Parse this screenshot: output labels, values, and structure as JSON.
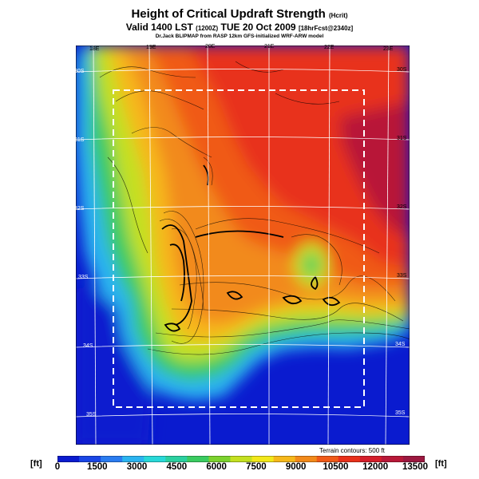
{
  "header": {
    "title": "Height of Critical Updraft Strength",
    "title_suffix": "(Hcrit)",
    "subtitle": "Valid 1400 LST",
    "subtitle_code": "(1200Z)",
    "subtitle_date": "TUE 20 Oct 2009",
    "subtitle_forecast": "[18hrFcst@2340z]",
    "credit": "Dr.Jack BLIPMAP from RASP 12km GFS-initialized WRF-ARW model"
  },
  "map": {
    "lon_labels_top": [
      "18E",
      "19E",
      "20E",
      "21E",
      "22E",
      "23E"
    ],
    "lon_labels_bottom": [
      "18E",
      "19E",
      "20E",
      "21E"
    ],
    "lat_labels_right": [
      "30S",
      "31S",
      "32S",
      "33S",
      "34S",
      "35S"
    ],
    "lat_labels_left": [
      "30S",
      "31S",
      "32S",
      "33S",
      "34S",
      "35S"
    ],
    "terrain_contours": "Terrain contours: 500 ft"
  },
  "colorbar": {
    "unit_left": "[ft]",
    "unit_right": "[ft]",
    "ticks": [
      "0",
      "1500",
      "3000",
      "4500",
      "6000",
      "7500",
      "9000",
      "10500",
      "12000",
      "13500"
    ],
    "colors": [
      "#0a1bcf",
      "#1a46e6",
      "#2a7cf0",
      "#2bb4f0",
      "#28d8d8",
      "#2bd0a0",
      "#3acb60",
      "#7cd22e",
      "#c4e020",
      "#f2e81a",
      "#f6b81a",
      "#f28a1a",
      "#f05a18",
      "#e8301a",
      "#d41e2a",
      "#b81838",
      "#9c1840"
    ]
  }
}
